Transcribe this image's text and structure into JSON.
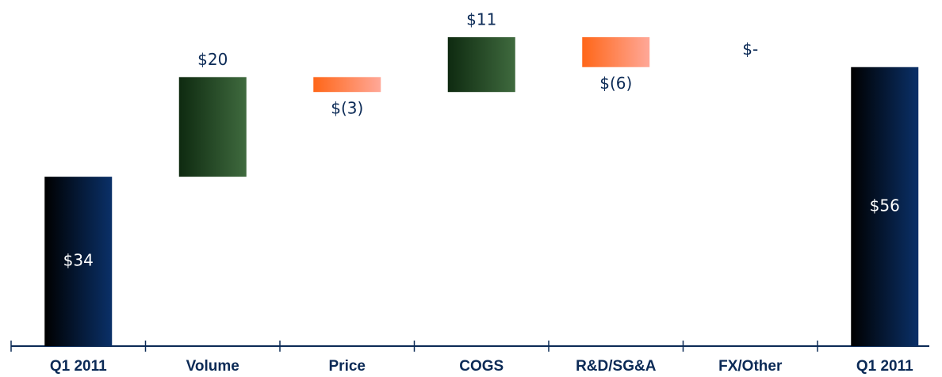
{
  "chart_data": {
    "type": "waterfall",
    "categories": [
      "Q1 2011",
      "Volume",
      "Price",
      "COGS",
      "R&D/SG&A",
      "FX/Other",
      "Q1 2011"
    ],
    "values": [
      34,
      20,
      -3,
      11,
      -6,
      0,
      56
    ],
    "value_labels": [
      "$34",
      "$20",
      "$(3)",
      "$11",
      "$(6)",
      "$-",
      "$56"
    ],
    "colors": {
      "total": [
        "#000000",
        "#0a3068"
      ],
      "increase": [
        "#0e2a10",
        "#3f6a3e"
      ],
      "decrease": [
        "#ff6618",
        "#ffa898"
      ]
    }
  }
}
